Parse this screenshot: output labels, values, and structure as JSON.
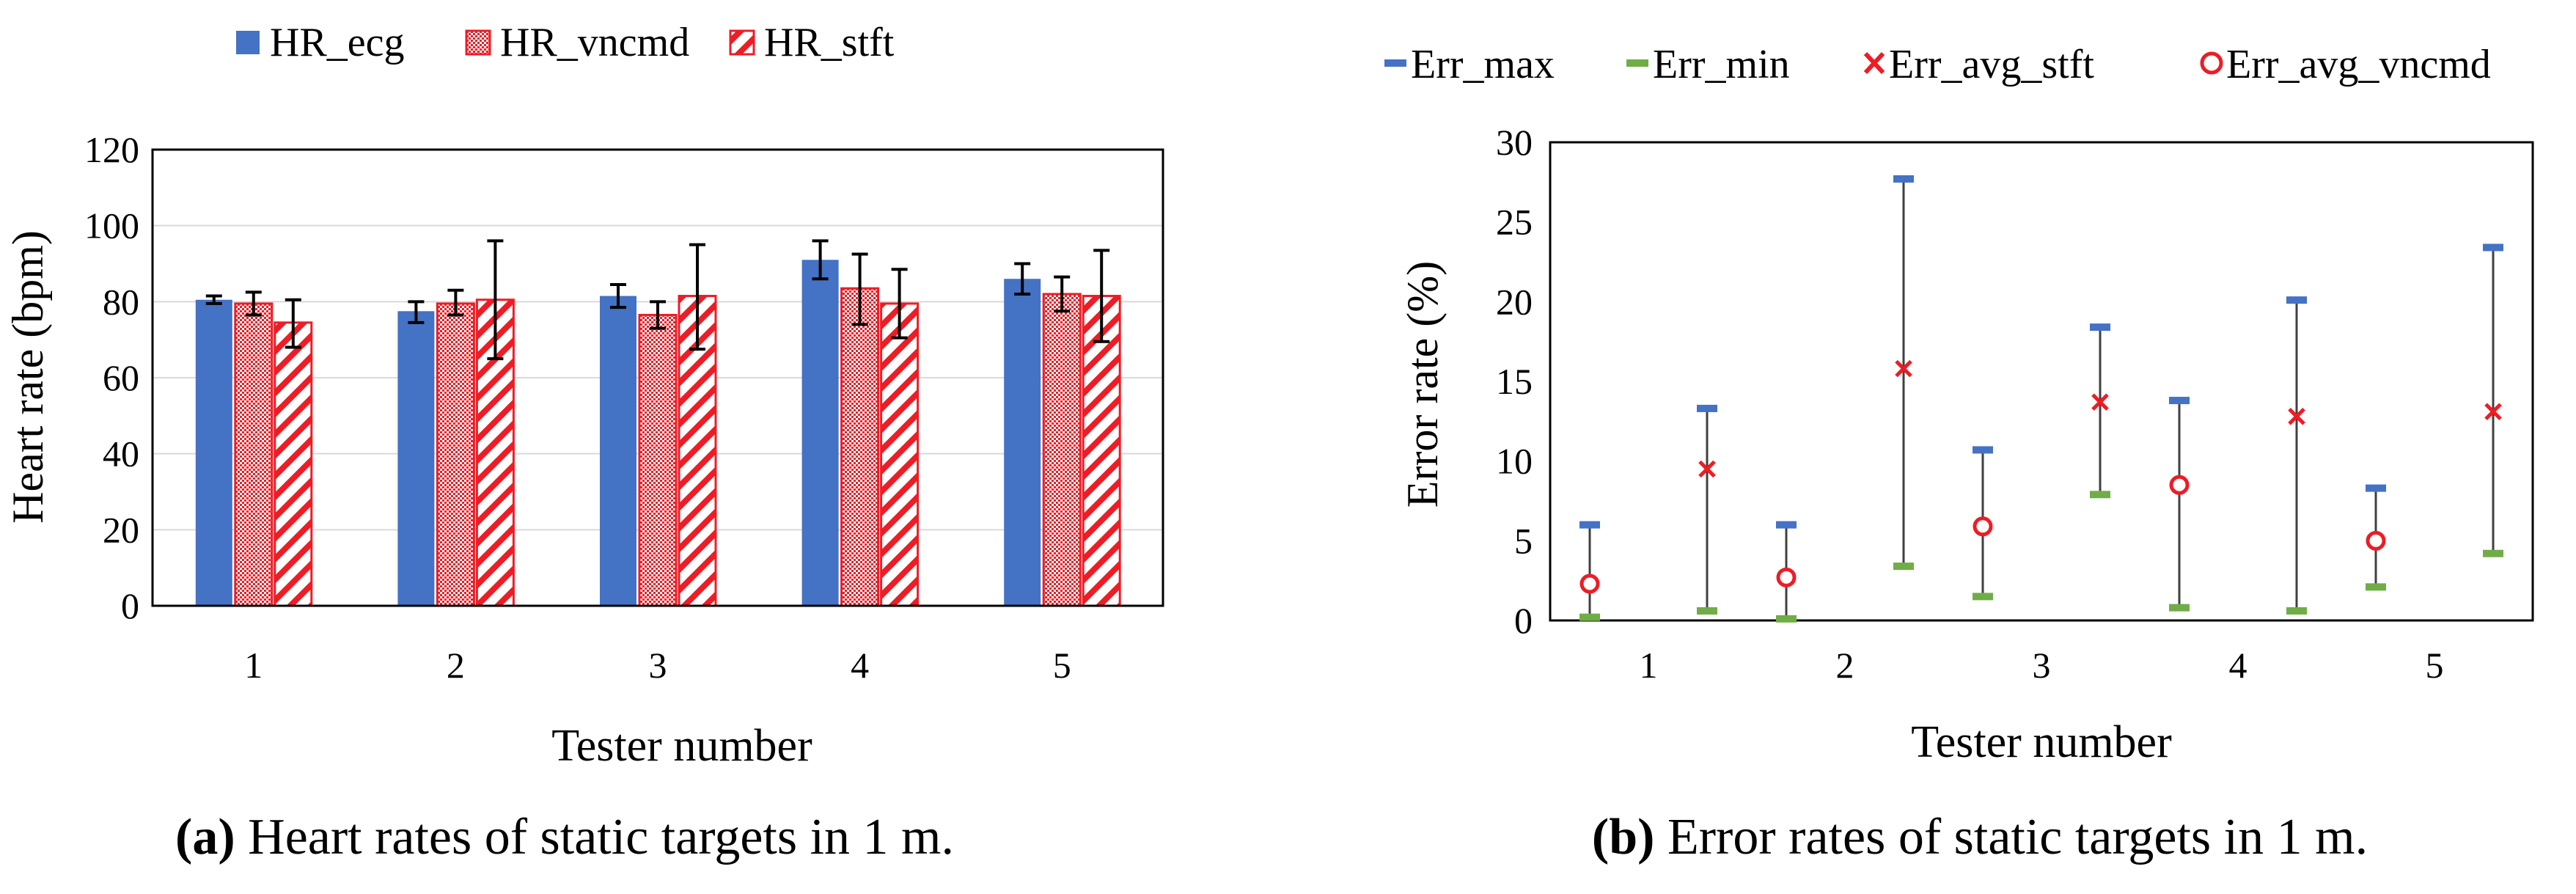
{
  "chart_data": [
    {
      "type": "bar",
      "caption_label": "(a)",
      "caption_text": " Heart rates of static targets in 1 m.",
      "xlabel": "Tester number",
      "ylabel": "Heart rate (bpm)",
      "ylim": [
        0,
        120
      ],
      "yticks": [
        "0",
        "20",
        "40",
        "60",
        "80",
        "100",
        "120"
      ],
      "categories": [
        "1",
        "2",
        "3",
        "4",
        "5"
      ],
      "legend_position": "top",
      "series": [
        {
          "name": "HR_ecg",
          "color": "#4472C4",
          "pattern": "solid",
          "values": [
            80.5,
            77.5,
            81.5,
            91,
            86
          ],
          "err_low": [
            79.5,
            74.5,
            78.5,
            86,
            82
          ],
          "err_high": [
            81.5,
            80,
            84.5,
            96,
            90
          ]
        },
        {
          "name": "HR_vncmd",
          "color": "#EE1C25",
          "pattern": "dots",
          "values": [
            79.5,
            79.5,
            76.5,
            83.5,
            82
          ],
          "err_low": [
            76.5,
            76.5,
            73,
            74,
            77.5
          ],
          "err_high": [
            82.5,
            83,
            80,
            92.5,
            86.5
          ]
        },
        {
          "name": "HR_stft",
          "color": "#EE1C25",
          "pattern": "hatch",
          "values": [
            74.5,
            80.5,
            81.5,
            79.5,
            81.5
          ],
          "err_low": [
            68,
            65,
            67.5,
            70.5,
            69.5
          ],
          "err_high": [
            80.5,
            96,
            95,
            88.5,
            93.5
          ]
        }
      ]
    },
    {
      "type": "scatter",
      "caption_label": "(b)",
      "caption_text": " Error rates of static targets in 1 m.",
      "xlabel": "Tester number",
      "ylabel": "Error rate (%)",
      "ylim": [
        0,
        30
      ],
      "yticks": [
        "0",
        "5",
        "10",
        "15",
        "20",
        "25",
        "30"
      ],
      "categories": [
        "1",
        "2",
        "3",
        "4",
        "5"
      ],
      "legend_position": "top",
      "legend": [
        {
          "name": "Err_max",
          "color": "#4472C4",
          "marker": "dash"
        },
        {
          "name": "Err_min",
          "color": "#70AD47",
          "marker": "dash"
        },
        {
          "name": "Err_avg_stft",
          "color": "#EE1C25",
          "marker": "x"
        },
        {
          "name": "Err_avg_vncmd",
          "color": "#EE1C25",
          "marker": "circle"
        }
      ],
      "points": [
        {
          "tester": 1,
          "method": "vncmd",
          "max": 6,
          "min": 0.2,
          "avg": 2.3
        },
        {
          "tester": 1,
          "method": "stft",
          "max": 13.3,
          "min": 0.6,
          "avg": 9.5
        },
        {
          "tester": 2,
          "method": "vncmd",
          "max": 6,
          "min": 0.1,
          "avg": 2.7
        },
        {
          "tester": 2,
          "method": "stft",
          "max": 27.7,
          "min": 3.4,
          "avg": 15.8
        },
        {
          "tester": 3,
          "method": "vncmd",
          "max": 10.7,
          "min": 1.5,
          "avg": 5.9
        },
        {
          "tester": 3,
          "method": "stft",
          "max": 18.4,
          "min": 7.9,
          "avg": 13.7
        },
        {
          "tester": 4,
          "method": "vncmd",
          "max": 13.8,
          "min": 0.8,
          "avg": 8.5
        },
        {
          "tester": 4,
          "method": "stft",
          "max": 20.1,
          "min": 0.6,
          "avg": 12.8
        },
        {
          "tester": 5,
          "method": "vncmd",
          "max": 8.3,
          "min": 2.1,
          "avg": 5
        },
        {
          "tester": 5,
          "method": "stft",
          "max": 23.4,
          "min": 4.2,
          "avg": 13.1
        }
      ]
    }
  ]
}
